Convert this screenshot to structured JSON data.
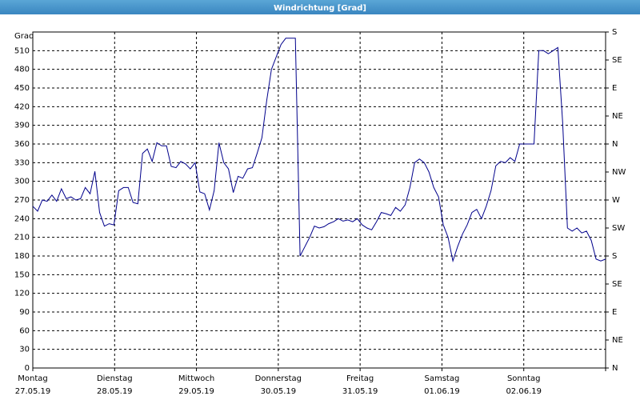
{
  "chart_data": {
    "type": "line",
    "title": "Windrichtung [Grad]",
    "ylabel": "Grad",
    "ylim": [
      0,
      540
    ],
    "yticks": [
      0,
      30,
      60,
      90,
      120,
      150,
      180,
      210,
      240,
      270,
      300,
      330,
      360,
      390,
      420,
      450,
      480,
      510
    ],
    "y2lim": [
      0,
      540
    ],
    "y2ticks": [
      {
        "value": 0,
        "label": "N"
      },
      {
        "value": 45,
        "label": "NE"
      },
      {
        "value": 90,
        "label": "E"
      },
      {
        "value": 135,
        "label": "SE"
      },
      {
        "value": 180,
        "label": "S"
      },
      {
        "value": 225,
        "label": "SW"
      },
      {
        "value": 270,
        "label": "W"
      },
      {
        "value": 315,
        "label": "NW"
      },
      {
        "value": 360,
        "label": "N"
      },
      {
        "value": 405,
        "label": "NE"
      },
      {
        "value": 450,
        "label": "E"
      },
      {
        "value": 495,
        "label": "SE"
      },
      {
        "value": 540,
        "label": "S"
      }
    ],
    "xlim": [
      0,
      7
    ],
    "xticks": [
      {
        "value": 0,
        "label": [
          "Montag",
          "27.05.19"
        ]
      },
      {
        "value": 1,
        "label": [
          "Dienstag",
          "28.05.19"
        ]
      },
      {
        "value": 2,
        "label": [
          "Mittwoch",
          "29.05.19"
        ]
      },
      {
        "value": 3,
        "label": [
          "Donnerstag",
          "30.05.19"
        ]
      },
      {
        "value": 4,
        "label": [
          "Freitag",
          "31.05.19"
        ]
      },
      {
        "value": 5,
        "label": [
          "Samstag",
          "01.06.19"
        ]
      },
      {
        "value": 6,
        "label": [
          "Sonntag",
          "02.06.19"
        ]
      },
      {
        "value": 7,
        "label": [
          "",
          ""
        ]
      }
    ],
    "grid": true,
    "series": [
      {
        "color": "#00008b",
        "values": [
          260,
          252,
          270,
          268,
          278,
          268,
          288,
          272,
          275,
          270,
          272,
          290,
          280,
          316,
          250,
          228,
          232,
          230,
          285,
          290,
          290,
          266,
          264,
          345,
          352,
          332,
          362,
          357,
          357,
          324,
          322,
          332,
          328,
          320,
          330,
          283,
          280,
          254,
          285,
          362,
          330,
          320,
          282,
          308,
          305,
          320,
          322,
          345,
          370,
          430,
          480,
          500,
          520,
          530,
          530,
          530,
          180,
          195,
          210,
          228,
          225,
          227,
          232,
          235,
          240,
          236,
          238,
          235,
          240,
          230,
          225,
          222,
          235,
          250,
          248,
          245,
          258,
          252,
          262,
          290,
          330,
          336,
          330,
          315,
          290,
          275,
          230,
          210,
          172,
          195,
          215,
          230,
          250,
          255,
          240,
          260,
          285,
          325,
          332,
          330,
          338,
          332,
          360,
          360,
          360,
          360,
          510,
          510,
          505,
          510,
          515,
          395,
          225,
          220,
          225,
          217,
          220,
          205,
          175,
          172,
          175
        ]
      }
    ]
  }
}
